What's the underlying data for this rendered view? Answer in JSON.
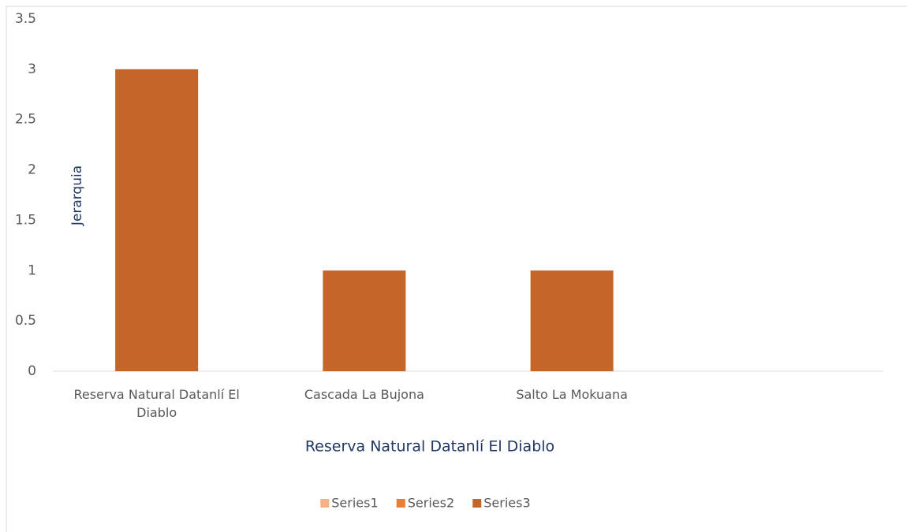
{
  "chart_data": {
    "type": "bar",
    "categories": [
      "Reserva Natural Datanlí El Diablo",
      "Cascada La Bujona",
      "Salto La Mokuana",
      null
    ],
    "series": [
      {
        "name": "Series1",
        "color": "#f4b183",
        "values": [
          null,
          null,
          null,
          null
        ]
      },
      {
        "name": "Series2",
        "color": "#ed7d31",
        "values": [
          null,
          null,
          null,
          null
        ]
      },
      {
        "name": "Series3",
        "color": "#c4662a",
        "values": [
          3,
          1,
          1,
          null
        ]
      }
    ],
    "ylim": [
      0,
      3.5
    ],
    "yticks": [
      0,
      0.5,
      1,
      1.5,
      2,
      2.5,
      3,
      3.5
    ],
    "y_label": "Jerarquia",
    "x_label": "Reserva Natural Datanlí El Diablo",
    "grid": false,
    "legend": "bottom"
  }
}
